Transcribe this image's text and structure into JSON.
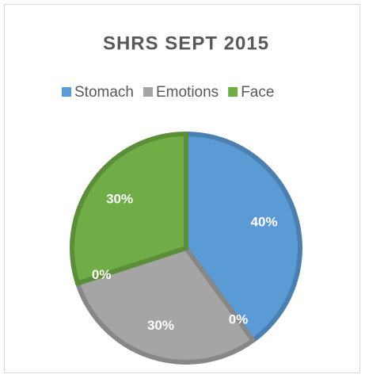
{
  "chart_data": {
    "type": "pie",
    "title": "SHRS SEPT 2015",
    "categories": [
      "Stomach",
      null,
      "Emotions",
      null,
      "Face"
    ],
    "values": [
      40,
      0,
      30,
      0,
      30
    ],
    "value_labels": [
      "40%",
      "0%",
      "30%",
      "0%",
      "30%"
    ],
    "colors": [
      "#5b9bd5",
      null,
      "#a5a5a5",
      null,
      "#70ad47"
    ],
    "legend": "top"
  }
}
